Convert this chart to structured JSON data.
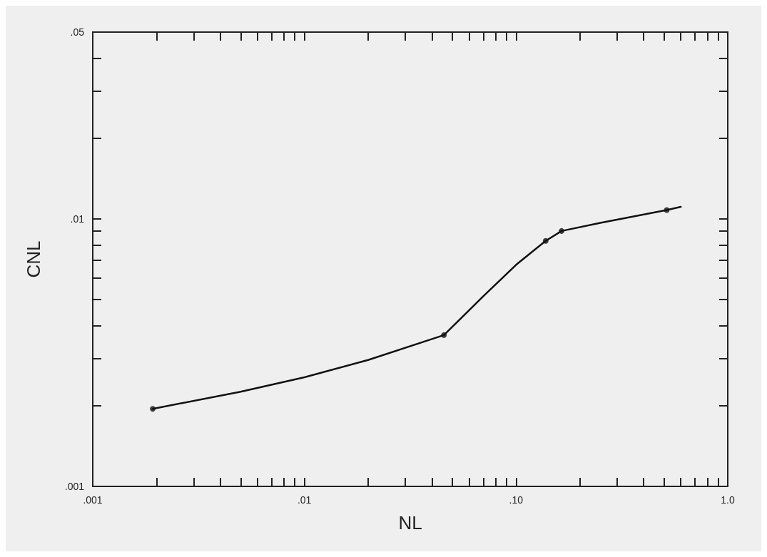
{
  "chart_data": {
    "type": "line",
    "xlabel": "NL",
    "ylabel": "CNL",
    "log": "xy",
    "grid": false,
    "xlim": [
      0.001,
      1
    ],
    "ylim": [
      0.001,
      0.05
    ],
    "xticks": [
      {
        "value": 0.001,
        "label": ".001"
      },
      {
        "value": 0.002,
        "label": null
      },
      {
        "value": 0.003,
        "label": null
      },
      {
        "value": 0.004,
        "label": null
      },
      {
        "value": 0.005,
        "label": null
      },
      {
        "value": 0.006,
        "label": null
      },
      {
        "value": 0.007,
        "label": null
      },
      {
        "value": 0.008,
        "label": null
      },
      {
        "value": 0.009,
        "label": null
      },
      {
        "value": 0.01,
        "label": ".01"
      },
      {
        "value": 0.02,
        "label": null
      },
      {
        "value": 0.03,
        "label": null
      },
      {
        "value": 0.04,
        "label": null
      },
      {
        "value": 0.05,
        "label": null
      },
      {
        "value": 0.06,
        "label": null
      },
      {
        "value": 0.07,
        "label": null
      },
      {
        "value": 0.08,
        "label": null
      },
      {
        "value": 0.09,
        "label": null
      },
      {
        "value": 0.1,
        "label": ".10"
      },
      {
        "value": 0.2,
        "label": null
      },
      {
        "value": 0.3,
        "label": null
      },
      {
        "value": 0.4,
        "label": null
      },
      {
        "value": 0.5,
        "label": null
      },
      {
        "value": 0.6,
        "label": null
      },
      {
        "value": 0.7,
        "label": null
      },
      {
        "value": 0.8,
        "label": null
      },
      {
        "value": 0.9,
        "label": null
      },
      {
        "value": 1,
        "label": "1.0"
      }
    ],
    "yticks": [
      {
        "value": 0.001,
        "label": ".001"
      },
      {
        "value": 0.002,
        "label": null
      },
      {
        "value": 0.003,
        "label": null
      },
      {
        "value": 0.004,
        "label": null
      },
      {
        "value": 0.005,
        "label": null
      },
      {
        "value": 0.006,
        "label": null
      },
      {
        "value": 0.007,
        "label": null
      },
      {
        "value": 0.008,
        "label": null
      },
      {
        "value": 0.009,
        "label": null
      },
      {
        "value": 0.01,
        "label": ".01"
      },
      {
        "value": 0.02,
        "label": null
      },
      {
        "value": 0.03,
        "label": null
      },
      {
        "value": 0.04,
        "label": null
      },
      {
        "value": 0.05,
        "label": ".05"
      }
    ],
    "series": [
      {
        "color": "#111111",
        "marker": "none",
        "line_style": "solid",
        "x": [
          0.00192,
          0.005,
          0.01,
          0.02,
          0.0456,
          0.07,
          0.1,
          0.138,
          0.164,
          0.25,
          0.515,
          0.6
        ],
        "values": [
          0.00195,
          0.00226,
          0.00256,
          0.00297,
          0.00368,
          0.00514,
          0.00674,
          0.00828,
          0.00902,
          0.00967,
          0.0108,
          0.0111
        ]
      },
      {
        "type": "scatter",
        "color": "#111111",
        "marker": "circle",
        "x": [
          0.00192,
          0.0456,
          0.138,
          0.164,
          0.515
        ],
        "values": [
          0.00195,
          0.00368,
          0.00828,
          0.00902,
          0.0108
        ]
      }
    ]
  }
}
